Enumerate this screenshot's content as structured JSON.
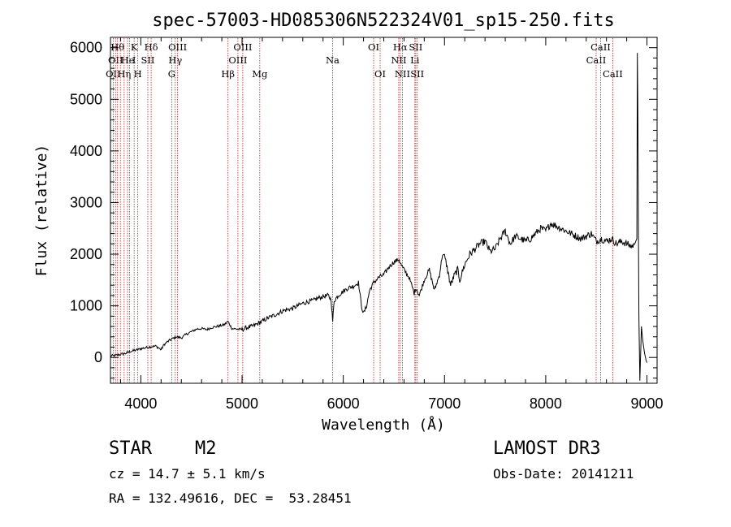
{
  "chart_data": {
    "type": "line",
    "title": "spec-57003-HD085306N522324V01_sp15-250.fits",
    "xlabel": "Wavelength (Å)",
    "ylabel": "Flux (relative)",
    "xlim": [
      3700,
      9100
    ],
    "ylim": [
      -500,
      6200
    ],
    "xticks": [
      4000,
      5000,
      6000,
      7000,
      8000,
      9000
    ],
    "yticks": [
      0,
      1000,
      2000,
      3000,
      4000,
      5000,
      6000
    ],
    "series": [
      {
        "name": "flux",
        "x": [
          3700,
          3750,
          3800,
          3850,
          3900,
          3950,
          4000,
          4050,
          4100,
          4150,
          4200,
          4230,
          4260,
          4300,
          4350,
          4400,
          4450,
          4500,
          4550,
          4600,
          4650,
          4700,
          4750,
          4800,
          4830,
          4860,
          4900,
          4950,
          5000,
          5050,
          5100,
          5150,
          5200,
          5250,
          5300,
          5350,
          5400,
          5450,
          5500,
          5550,
          5600,
          5650,
          5700,
          5750,
          5800,
          5850,
          5880,
          5895,
          5910,
          5950,
          6000,
          6050,
          6100,
          6150,
          6180,
          6200,
          6230,
          6260,
          6300,
          6350,
          6400,
          6450,
          6500,
          6550,
          6570,
          6600,
          6650,
          6700,
          6720,
          6750,
          6800,
          6850,
          6900,
          6950,
          6980,
          7000,
          7020,
          7060,
          7100,
          7130,
          7150,
          7200,
          7250,
          7300,
          7350,
          7400,
          7450,
          7500,
          7550,
          7600,
          7650,
          7700,
          7750,
          7800,
          7850,
          7900,
          7950,
          8000,
          8050,
          8100,
          8150,
          8200,
          8250,
          8300,
          8350,
          8400,
          8450,
          8500,
          8550,
          8600,
          8650,
          8700,
          8750,
          8800,
          8850,
          8880,
          8900,
          8905,
          8910,
          8920,
          8930,
          8945,
          8960,
          8975,
          8990,
          9000
        ],
        "y": [
          30,
          40,
          60,
          80,
          120,
          140,
          170,
          190,
          210,
          220,
          150,
          250,
          300,
          350,
          400,
          380,
          450,
          500,
          550,
          560,
          540,
          580,
          600,
          620,
          640,
          700,
          560,
          550,
          540,
          580,
          600,
          650,
          700,
          760,
          800,
          850,
          900,
          930,
          950,
          1000,
          1050,
          1080,
          1100,
          1150,
          1180,
          1200,
          1120,
          700,
          1100,
          1200,
          1280,
          1350,
          1380,
          1450,
          1000,
          850,
          1000,
          1300,
          1450,
          1550,
          1600,
          1750,
          1850,
          1900,
          1800,
          1700,
          1550,
          1250,
          1350,
          1200,
          1500,
          1700,
          1300,
          1600,
          2000,
          1950,
          1800,
          1400,
          1600,
          1700,
          1500,
          1800,
          2000,
          2100,
          2200,
          2250,
          2050,
          2100,
          2300,
          2450,
          2200,
          2350,
          2300,
          2250,
          2300,
          2400,
          2500,
          2450,
          2600,
          2550,
          2500,
          2450,
          2400,
          2350,
          2300,
          2350,
          2400,
          2250,
          2300,
          2250,
          2300,
          2200,
          2250,
          2200,
          2150,
          2200,
          2300,
          5900,
          4800,
          800,
          -450,
          600,
          300,
          100,
          -50,
          -100
        ]
      }
    ],
    "lines": [
      {
        "wave": 3727,
        "row": [
          {
            "r": 2,
            "t": "OII"
          }
        ]
      },
      {
        "wave": 3750,
        "row": [
          {
            "r": 1,
            "t": "OII"
          }
        ]
      },
      {
        "wave": 3770,
        "row": [
          {
            "r": 0,
            "t": "Hθ"
          }
        ]
      },
      {
        "wave": 3798,
        "row": []
      },
      {
        "wave": 3835,
        "row": [
          {
            "r": 2,
            "t": "Hη"
          }
        ]
      },
      {
        "wave": 3869,
        "row": [
          {
            "r": 1,
            "t": "He"
          }
        ]
      },
      {
        "wave": 3889,
        "row": []
      },
      {
        "wave": 3934,
        "row": [
          {
            "r": 0,
            "t": "K"
          },
          {
            "r": 1,
            "t": "I"
          }
        ]
      },
      {
        "wave": 3970,
        "row": [
          {
            "r": 2,
            "t": "H"
          }
        ]
      },
      {
        "wave": 4069,
        "row": [
          {
            "r": 1,
            "t": "SII"
          }
        ]
      },
      {
        "wave": 4102,
        "row": [
          {
            "r": 0,
            "t": "Hδ"
          }
        ]
      },
      {
        "wave": 4305,
        "row": [
          {
            "r": 2,
            "t": "G"
          }
        ]
      },
      {
        "wave": 4340,
        "row": [
          {
            "r": 1,
            "t": "Hγ"
          }
        ]
      },
      {
        "wave": 4363,
        "row": [
          {
            "r": 0,
            "t": "OIII"
          }
        ]
      },
      {
        "wave": 4861,
        "row": [
          {
            "r": 2,
            "t": "Hβ"
          }
        ]
      },
      {
        "wave": 4959,
        "row": [
          {
            "r": 1,
            "t": "OIII"
          }
        ]
      },
      {
        "wave": 5007,
        "row": [
          {
            "r": 0,
            "t": "OIII"
          }
        ]
      },
      {
        "wave": 5175,
        "row": [
          {
            "r": 2,
            "t": "Mg"
          }
        ]
      },
      {
        "wave": 5894,
        "row": [
          {
            "r": 1,
            "t": "Na"
          }
        ]
      },
      {
        "wave": 6300,
        "row": [
          {
            "r": 0,
            "t": "OI"
          }
        ]
      },
      {
        "wave": 6364,
        "row": [
          {
            "r": 2,
            "t": "OI"
          }
        ]
      },
      {
        "wave": 6548,
        "row": [
          {
            "r": 1,
            "t": "NII"
          }
        ]
      },
      {
        "wave": 6563,
        "row": [
          {
            "r": 0,
            "t": "Hα"
          }
        ]
      },
      {
        "wave": 6584,
        "row": [
          {
            "r": 2,
            "t": "NII"
          }
        ]
      },
      {
        "wave": 6707,
        "row": [
          {
            "r": 1,
            "t": "Li"
          }
        ]
      },
      {
        "wave": 6716,
        "row": [
          {
            "r": 0,
            "t": "SII"
          }
        ]
      },
      {
        "wave": 6731,
        "row": [
          {
            "r": 2,
            "t": "SII"
          }
        ]
      },
      {
        "wave": 8498,
        "row": [
          {
            "r": 1,
            "t": "CaII"
          }
        ]
      },
      {
        "wave": 8542,
        "row": [
          {
            "r": 0,
            "t": "CaII"
          }
        ]
      },
      {
        "wave": 8662,
        "row": [
          {
            "r": 2,
            "t": "CaII"
          }
        ]
      }
    ]
  },
  "info": {
    "object_type": "STAR",
    "subclass": "M2",
    "survey": "LAMOST DR3",
    "redshift": "cz = 14.7 ± 5.1 km/s",
    "obs_date": "Obs-Date: 20141211",
    "coords": "RA = 132.49616, DEC =  53.28451"
  },
  "colors": {
    "line_marker": "#b22222",
    "spectrum": "#000000"
  }
}
